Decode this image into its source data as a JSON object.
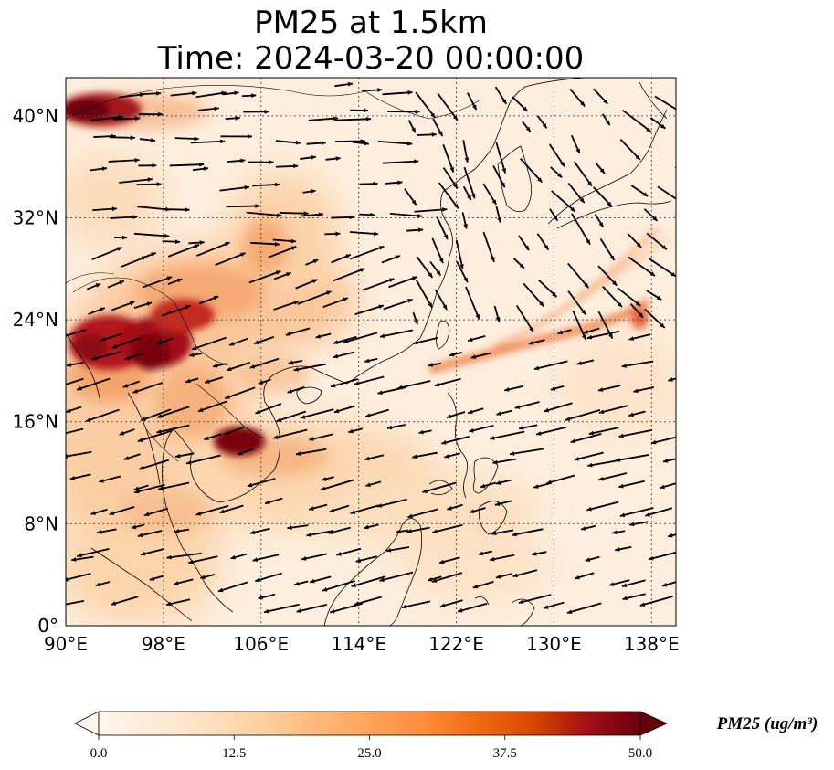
{
  "title_line1": "PM25 at 1.5km",
  "title_line2": "Time: 2024-03-20 00:00:00",
  "map": {
    "lon_range": [
      90,
      140
    ],
    "lat_range": [
      0,
      43
    ],
    "lon_ticks": [
      {
        "value": 90,
        "label": "90°E"
      },
      {
        "value": 98,
        "label": "98°E"
      },
      {
        "value": 106,
        "label": "106°E"
      },
      {
        "value": 114,
        "label": "114°E"
      },
      {
        "value": 122,
        "label": "122°E"
      },
      {
        "value": 130,
        "label": "130°E"
      },
      {
        "value": 138,
        "label": "138°E"
      }
    ],
    "lat_ticks": [
      {
        "value": 0,
        "label": "0°"
      },
      {
        "value": 8,
        "label": "8°N"
      },
      {
        "value": 16,
        "label": "16°N"
      },
      {
        "value": 24,
        "label": "24°N"
      },
      {
        "value": 32,
        "label": "32°N"
      },
      {
        "value": 40,
        "label": "40°N"
      }
    ],
    "gridlines": true,
    "hotspots": [
      {
        "lon": 93,
        "lat": 42,
        "value": 50
      },
      {
        "lon": 96,
        "lat": 23,
        "value": 48
      },
      {
        "lon": 99,
        "lat": 22.5,
        "value": 50
      },
      {
        "lon": 104.5,
        "lat": 15.5,
        "value": 50
      },
      {
        "lon": 101,
        "lat": 25,
        "value": 35
      },
      {
        "lon": 106,
        "lat": 30,
        "value": 22
      },
      {
        "lon": 130,
        "lat": 23,
        "value": 28
      },
      {
        "lon": 136,
        "lat": 25.5,
        "value": 30
      }
    ]
  },
  "colorbar": {
    "title": "PM25 (ug/m³)",
    "min": 0,
    "max": 50,
    "ticks": [
      "0.0",
      "12.5",
      "25.0",
      "37.5",
      "50.0"
    ],
    "colors": [
      "#fff5eb",
      "#fdd8b0",
      "#fdae6b",
      "#f16913",
      "#d94801",
      "#a50f15",
      "#67000d"
    ],
    "extend": "both"
  }
}
